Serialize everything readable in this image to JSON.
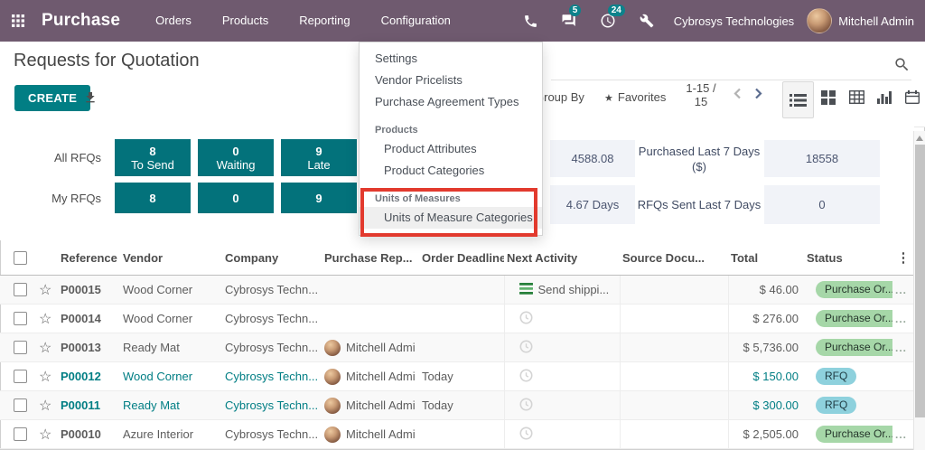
{
  "colors": {
    "navbar_purple": "#6f5a6f",
    "accent_teal": "#017e84",
    "tile_teal": "#03727b",
    "badge_green_bg": "#a6d7a8",
    "badge_cyan_bg": "#8ed1dd",
    "today_orange": "#d9782a",
    "highlight_red": "#e23a2e",
    "nav_badge_teal": "#0c828b"
  },
  "icons": {
    "favorites_star": "★",
    "row_star": "☆",
    "kebab": "⋮"
  },
  "navbar": {
    "app": "Purchase",
    "menus": [
      {
        "label": "Orders"
      },
      {
        "label": "Products"
      },
      {
        "label": "Reporting"
      },
      {
        "label": "Configuration",
        "active": true
      }
    ],
    "messages_badge": "5",
    "activities_badge": "24",
    "company": "Cybrosys Technologies",
    "user": "Mitchell Admin"
  },
  "control": {
    "title": "Requests for Quotation",
    "create_label": "CREATE",
    "group_by_label": "Group By",
    "favorites_label": "Favorites",
    "pager": "1-15 / 15"
  },
  "config_menu": {
    "items": [
      {
        "type": "item",
        "label": "Settings"
      },
      {
        "type": "item",
        "label": "Vendor Pricelists"
      },
      {
        "type": "item",
        "label": "Purchase Agreement Types"
      },
      {
        "type": "header",
        "label": "Products"
      },
      {
        "type": "item",
        "sub": true,
        "label": "Product Attributes"
      },
      {
        "type": "item",
        "sub": true,
        "label": "Product Categories"
      },
      {
        "type": "header",
        "label": "Units of Measures"
      },
      {
        "type": "item",
        "sub": true,
        "active": true,
        "label": "Units of Measure Categories"
      }
    ]
  },
  "dashboard": {
    "row_labels": [
      "All RFQs",
      "My RFQs"
    ],
    "rfq_columns": [
      {
        "count": "8",
        "caption": "To Send",
        "my_count": "8"
      },
      {
        "count": "0",
        "caption": "Waiting",
        "my_count": "0"
      },
      {
        "count": "9",
        "caption": "Late",
        "my_count": "9"
      }
    ],
    "stats": [
      {
        "value": "4588.08",
        "label": "Purchased Last 7 Days ($)",
        "value2": "18558"
      },
      {
        "value": "4.67 Days",
        "label": "RFQs Sent Last 7 Days",
        "value2": "0"
      }
    ]
  },
  "table": {
    "columns": [
      {
        "label": "Reference"
      },
      {
        "label": "Vendor"
      },
      {
        "label": "Company"
      },
      {
        "label": "Purchase Rep..."
      },
      {
        "label": "Order Deadline"
      },
      {
        "label": "Next Activity"
      },
      {
        "label": "Source Docu..."
      },
      {
        "label": "Total",
        "align": "right"
      },
      {
        "label": "Status"
      }
    ],
    "rows": [
      {
        "reference": "P00015",
        "vendor": "Wood Corner",
        "company": "Cybrosys Techn...",
        "rep": "",
        "deadline": "",
        "activity_icon": "shipping",
        "activity_text": "Send shippi...",
        "source": "",
        "total": "$ 46.00",
        "status": "Purchase Or...",
        "status_variant": "green",
        "teal": false,
        "after_status": "..."
      },
      {
        "reference": "P00014",
        "vendor": "Wood Corner",
        "company": "Cybrosys Techn...",
        "rep": "",
        "deadline": "",
        "activity_icon": "clock",
        "activity_text": "",
        "source": "",
        "total": "$ 276.00",
        "status": "Purchase Or...",
        "status_variant": "green",
        "teal": false,
        "after_status": "..."
      },
      {
        "reference": "P00013",
        "vendor": "Ready Mat",
        "company": "Cybrosys Techn...",
        "rep": "Mitchell Admi",
        "deadline": "",
        "activity_icon": "clock",
        "activity_text": "",
        "source": "",
        "total": "$ 5,736.00",
        "status": "Purchase Or...",
        "status_variant": "green",
        "teal": false,
        "after_status": "..."
      },
      {
        "reference": "P00012",
        "vendor": "Wood Corner",
        "company": "Cybrosys Techn...",
        "rep": "Mitchell Admi",
        "deadline": "Today",
        "activity_icon": "clock",
        "activity_text": "",
        "source": "",
        "total": "$ 150.00",
        "status": "RFQ",
        "status_variant": "cyan",
        "teal": true,
        "after_status": ""
      },
      {
        "reference": "P00011",
        "vendor": "Ready Mat",
        "company": "Cybrosys Techn...",
        "rep": "Mitchell Admi",
        "deadline": "Today",
        "activity_icon": "clock",
        "activity_text": "",
        "source": "",
        "total": "$ 300.00",
        "status": "RFQ",
        "status_variant": "cyan",
        "teal": true,
        "after_status": ""
      },
      {
        "reference": "P00010",
        "vendor": "Azure Interior",
        "company": "Cybrosys Techn...",
        "rep": "Mitchell Admi",
        "deadline": "",
        "activity_icon": "clock",
        "activity_text": "",
        "source": "",
        "total": "$ 2,505.00",
        "status": "Purchase Or...",
        "status_variant": "green",
        "teal": false,
        "after_status": "..."
      }
    ]
  }
}
